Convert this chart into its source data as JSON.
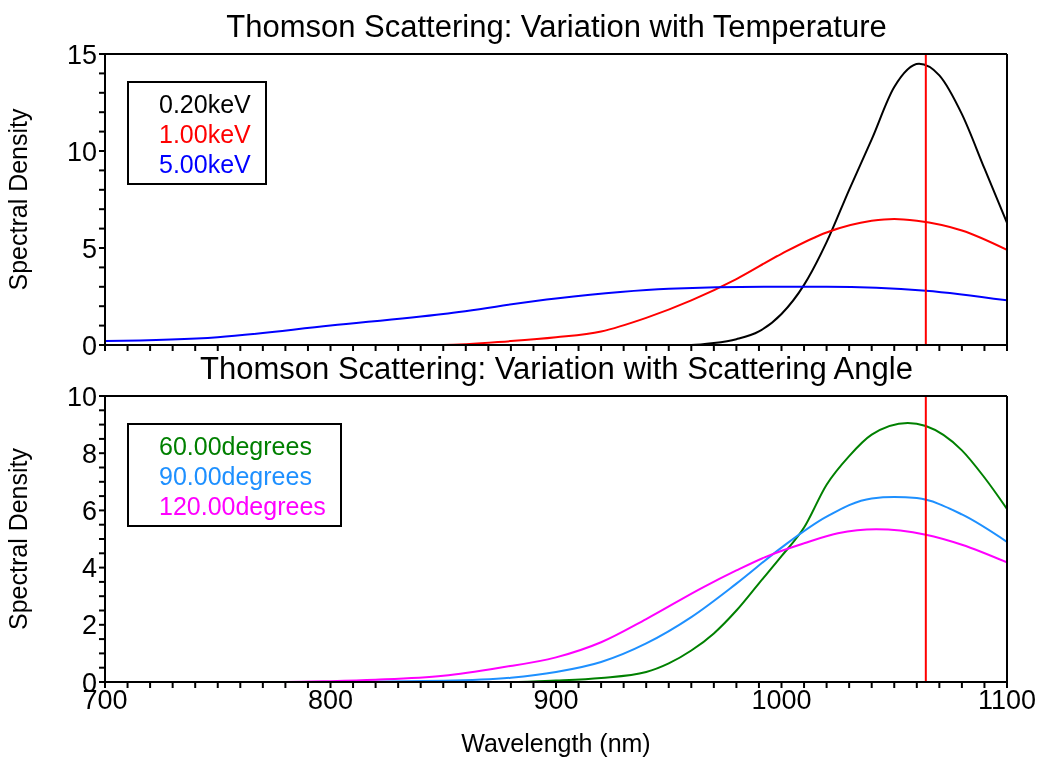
{
  "chart_data": [
    {
      "type": "line",
      "title": "Thomson Scattering: Variation with Temperature",
      "ylabel": "Spectral Density",
      "xlim": [
        700,
        1100
      ],
      "ylim": [
        0,
        15
      ],
      "xticks": [
        {
          "value": 700,
          "label": null
        },
        {
          "value": 710,
          "label": null
        },
        {
          "value": 720,
          "label": null
        },
        {
          "value": 730,
          "label": null
        },
        {
          "value": 740,
          "label": null
        },
        {
          "value": 750,
          "label": null
        },
        {
          "value": 760,
          "label": null
        },
        {
          "value": 770,
          "label": null
        },
        {
          "value": 780,
          "label": null
        },
        {
          "value": 790,
          "label": null
        },
        {
          "value": 800,
          "label": null
        },
        {
          "value": 810,
          "label": null
        },
        {
          "value": 820,
          "label": null
        },
        {
          "value": 830,
          "label": null
        },
        {
          "value": 840,
          "label": null
        },
        {
          "value": 850,
          "label": null
        },
        {
          "value": 860,
          "label": null
        },
        {
          "value": 870,
          "label": null
        },
        {
          "value": 880,
          "label": null
        },
        {
          "value": 890,
          "label": null
        },
        {
          "value": 900,
          "label": null
        },
        {
          "value": 910,
          "label": null
        },
        {
          "value": 920,
          "label": null
        },
        {
          "value": 930,
          "label": null
        },
        {
          "value": 940,
          "label": null
        },
        {
          "value": 950,
          "label": null
        },
        {
          "value": 960,
          "label": null
        },
        {
          "value": 970,
          "label": null
        },
        {
          "value": 980,
          "label": null
        },
        {
          "value": 990,
          "label": null
        },
        {
          "value": 1000,
          "label": null
        },
        {
          "value": 1010,
          "label": null
        },
        {
          "value": 1020,
          "label": null
        },
        {
          "value": 1030,
          "label": null
        },
        {
          "value": 1040,
          "label": null
        },
        {
          "value": 1050,
          "label": null
        },
        {
          "value": 1060,
          "label": null
        },
        {
          "value": 1070,
          "label": null
        },
        {
          "value": 1080,
          "label": null
        },
        {
          "value": 1090,
          "label": null
        },
        {
          "value": 1100,
          "label": null
        }
      ],
      "yticks": [
        0,
        {
          "value": 1,
          "label": null
        },
        {
          "value": 2,
          "label": null
        },
        {
          "value": 3,
          "label": null
        },
        {
          "value": 4,
          "label": null
        },
        5,
        {
          "value": 6,
          "label": null
        },
        {
          "value": 7,
          "label": null
        },
        {
          "value": 8,
          "label": null
        },
        {
          "value": 9,
          "label": null
        },
        10,
        {
          "value": 11,
          "label": null
        },
        {
          "value": 12,
          "label": null
        },
        {
          "value": 13,
          "label": null
        },
        {
          "value": 14,
          "label": null
        },
        15
      ],
      "tick_labels": "y",
      "legend": "top left",
      "marker": "none",
      "line_style": "solid",
      "ref_lines": [
        {
          "axis": "x",
          "value": 1064,
          "color": "#ff0000"
        }
      ],
      "series": [
        {
          "name": "0.20keV",
          "color": "#000000",
          "x": [
            700,
            800,
            900,
            940,
            950,
            960,
            970,
            980,
            990,
            1000,
            1010,
            1020,
            1030,
            1040,
            1050,
            1061,
            1070,
            1080,
            1090,
            1100
          ],
          "values": [
            0,
            0,
            0,
            0,
            0,
            0,
            0.1,
            0.3,
            0.7,
            1.6,
            3.1,
            5.3,
            8.0,
            10.6,
            13.3,
            14.5,
            13.9,
            11.9,
            9.1,
            6.3
          ]
        },
        {
          "name": "1.00keV",
          "color": "#ff0000",
          "x": [
            700,
            800,
            850,
            880,
            900,
            920,
            940,
            960,
            980,
            1000,
            1020,
            1040,
            1050,
            1060,
            1080,
            1100
          ],
          "values": [
            0,
            0,
            0,
            0.2,
            0.4,
            0.7,
            1.4,
            2.3,
            3.4,
            4.7,
            5.8,
            6.4,
            6.5,
            6.4,
            5.9,
            4.9
          ]
        },
        {
          "name": "5.00keV",
          "color": "#0000ff",
          "x": [
            700,
            750,
            800,
            850,
            900,
            950,
            993,
            1020,
            1064,
            1100
          ],
          "values": [
            0.2,
            0.4,
            1.0,
            1.6,
            2.4,
            2.9,
            3.0,
            3.0,
            2.8,
            2.3
          ]
        }
      ]
    },
    {
      "type": "line",
      "title": "Thomson Scattering: Variation with Scattering Angle",
      "xlabel": "Wavelength (nm)",
      "ylabel": "Spectral Density",
      "xlim": [
        700,
        1100
      ],
      "ylim": [
        0,
        10
      ],
      "xticks": [
        700,
        {
          "value": 710,
          "label": null
        },
        {
          "value": 720,
          "label": null
        },
        {
          "value": 730,
          "label": null
        },
        {
          "value": 740,
          "label": null
        },
        {
          "value": 750,
          "label": null
        },
        {
          "value": 760,
          "label": null
        },
        {
          "value": 770,
          "label": null
        },
        {
          "value": 780,
          "label": null
        },
        {
          "value": 790,
          "label": null
        },
        800,
        {
          "value": 810,
          "label": null
        },
        {
          "value": 820,
          "label": null
        },
        {
          "value": 830,
          "label": null
        },
        {
          "value": 840,
          "label": null
        },
        {
          "value": 850,
          "label": null
        },
        {
          "value": 860,
          "label": null
        },
        {
          "value": 870,
          "label": null
        },
        {
          "value": 880,
          "label": null
        },
        {
          "value": 890,
          "label": null
        },
        900,
        {
          "value": 910,
          "label": null
        },
        {
          "value": 920,
          "label": null
        },
        {
          "value": 930,
          "label": null
        },
        {
          "value": 940,
          "label": null
        },
        {
          "value": 950,
          "label": null
        },
        {
          "value": 960,
          "label": null
        },
        {
          "value": 970,
          "label": null
        },
        {
          "value": 980,
          "label": null
        },
        {
          "value": 990,
          "label": null
        },
        1000,
        {
          "value": 1010,
          "label": null
        },
        {
          "value": 1020,
          "label": null
        },
        {
          "value": 1030,
          "label": null
        },
        {
          "value": 1040,
          "label": null
        },
        {
          "value": 1050,
          "label": null
        },
        {
          "value": 1060,
          "label": null
        },
        {
          "value": 1070,
          "label": null
        },
        {
          "value": 1080,
          "label": null
        },
        {
          "value": 1090,
          "label": null
        },
        1100
      ],
      "yticks": [
        0,
        {
          "value": 0.5,
          "label": null
        },
        {
          "value": 1,
          "label": null
        },
        {
          "value": 1.5,
          "label": null
        },
        2,
        {
          "value": 2.5,
          "label": null
        },
        {
          "value": 3,
          "label": null
        },
        {
          "value": 3.5,
          "label": null
        },
        4,
        {
          "value": 4.5,
          "label": null
        },
        {
          "value": 5,
          "label": null
        },
        {
          "value": 5.5,
          "label": null
        },
        6,
        {
          "value": 6.5,
          "label": null
        },
        {
          "value": 7,
          "label": null
        },
        {
          "value": 7.5,
          "label": null
        },
        8,
        {
          "value": 8.5,
          "label": null
        },
        {
          "value": 9,
          "label": null
        },
        {
          "value": 9.5,
          "label": null
        },
        10
      ],
      "legend": "top left",
      "marker": "none",
      "line_style": "solid",
      "ref_lines": [
        {
          "axis": "x",
          "value": 1064,
          "color": "#ff0000"
        }
      ],
      "series": [
        {
          "name": "60.00degrees",
          "color": "#008000",
          "x": [
            700,
            800,
            880,
            900,
            920,
            940,
            950,
            960,
            970,
            980,
            990,
            1000,
            1010,
            1020,
            1030,
            1040,
            1056,
            1064,
            1080,
            1090,
            1100
          ],
          "values": [
            0,
            0,
            0,
            0.05,
            0.14,
            0.35,
            0.65,
            1.1,
            1.7,
            2.5,
            3.45,
            4.4,
            5.4,
            6.9,
            7.9,
            8.65,
            9.06,
            8.95,
            8.1,
            7.15,
            6.05
          ]
        },
        {
          "name": "90.00degrees",
          "color": "#1e90ff",
          "x": [
            700,
            800,
            850,
            880,
            900,
            920,
            940,
            960,
            980,
            1000,
            1020,
            1040,
            1050,
            1060,
            1080,
            1100
          ],
          "values": [
            0,
            0,
            0.04,
            0.15,
            0.35,
            0.7,
            1.35,
            2.27,
            3.44,
            4.7,
            5.78,
            6.42,
            6.47,
            6.43,
            5.86,
            4.9
          ]
        },
        {
          "name": "120.00degrees",
          "color": "#ff00ff",
          "x": [
            700,
            780,
            800,
            820,
            850,
            875,
            900,
            920,
            940,
            965,
            980,
            992.5,
            1010,
            1025,
            1042,
            1064,
            1080,
            1100
          ],
          "values": [
            0,
            0,
            0.03,
            0.08,
            0.22,
            0.5,
            0.86,
            1.39,
            2.2,
            3.3,
            3.9,
            4.36,
            4.85,
            5.2,
            5.34,
            5.15,
            4.8,
            4.18
          ]
        }
      ]
    }
  ]
}
